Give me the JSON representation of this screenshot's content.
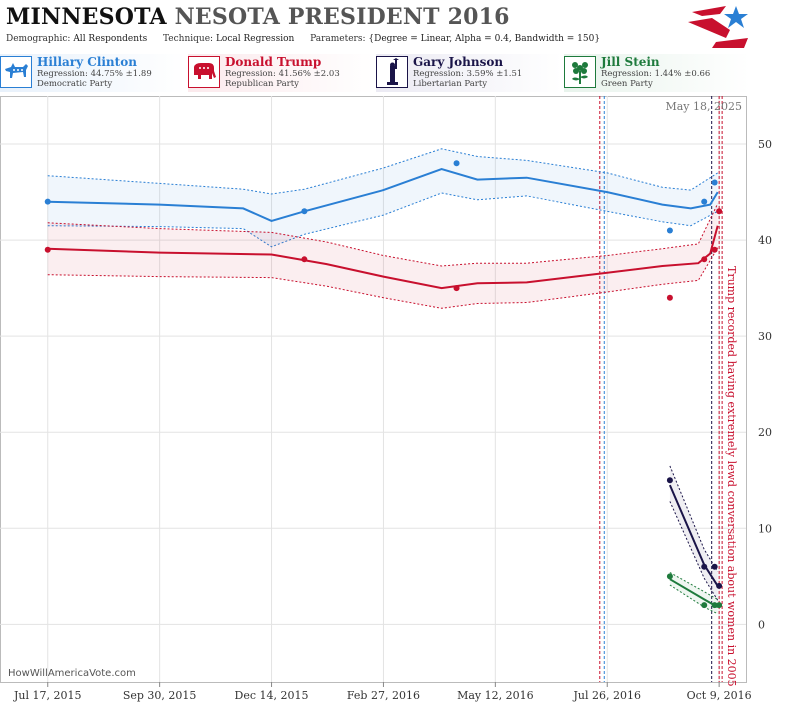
{
  "header": {
    "title_state": "MINNESOTA",
    "title_rest": "NESOTA PRESIDENT 2016",
    "demographic_label": "Demographic:",
    "demographic_value": "All Respondents",
    "technique_label": "Technique:",
    "technique_value": "Local Regression",
    "parameters_label": "Parameters:",
    "parameters_value": "{Degree = Linear, Alpha = 0.4, Bandwidth = 150}"
  },
  "candidates": [
    {
      "name": "Hillary Clinton",
      "regression": "Regression: 44.75% ±1.89",
      "party": "Democratic Party",
      "color": "#2a7fd4",
      "icon": "donkey-icon"
    },
    {
      "name": "Donald Trump",
      "regression": "Regression: 41.56% ±2.03",
      "party": "Republican Party",
      "color": "#c8102e",
      "icon": "elephant-icon"
    },
    {
      "name": "Gary Johnson",
      "regression": "Regression: 3.59% ±1.51",
      "party": "Libertarian Party",
      "color": "#1a1448",
      "icon": "statue-of-liberty-icon"
    },
    {
      "name": "Jill Stein",
      "regression": "Regression: 1.44% ±0.66",
      "party": "Green Party",
      "color": "#1e7a3c",
      "icon": "flower-icon"
    }
  ],
  "footer": "HowWillAmericaVote.com",
  "chart_data": {
    "type": "line",
    "date_label": "May 18, 2025",
    "x_ticks": [
      "Jul 17, 2015",
      "Sep 30, 2015",
      "Dec 14, 2015",
      "Feb 27, 2016",
      "May 12, 2016",
      "Jul 26, 2016",
      "Oct 9, 2016"
    ],
    "x_range": [
      "2015-06-15",
      "2016-10-27"
    ],
    "y_ticks": [
      0,
      10,
      20,
      30,
      40,
      50
    ],
    "ylim": [
      -6,
      55
    ],
    "grid": true,
    "annotation": "Trump recorded having extremely lewd conversation about women in 2005",
    "event_lines": [
      {
        "date": "2016-07-21",
        "color": "#c8102e"
      },
      {
        "date": "2016-07-24",
        "color": "#2a7fd4"
      },
      {
        "date": "2016-10-04",
        "color": "#1a1448"
      },
      {
        "date": "2016-10-09",
        "color": "#c8102e"
      },
      {
        "date": "2016-10-11",
        "color": "#c8102e"
      }
    ],
    "series": [
      {
        "name": "Hillary Clinton",
        "color": "#2a7fd4",
        "band": "#2a7fd4",
        "line": [
          [
            "2015-07-17",
            44.0
          ],
          [
            "2015-09-30",
            43.7
          ],
          [
            "2015-11-25",
            43.3
          ],
          [
            "2015-12-14",
            42.0
          ],
          [
            "2016-01-05",
            43.0
          ],
          [
            "2016-02-27",
            45.2
          ],
          [
            "2016-04-06",
            47.4
          ],
          [
            "2016-04-30",
            46.3
          ],
          [
            "2016-06-02",
            46.5
          ],
          [
            "2016-07-26",
            45.0
          ],
          [
            "2016-09-01",
            43.7
          ],
          [
            "2016-09-20",
            43.3
          ],
          [
            "2016-10-03",
            43.7
          ],
          [
            "2016-10-08",
            45.0
          ]
        ],
        "upper": [
          [
            "2015-07-17",
            46.7
          ],
          [
            "2015-09-30",
            45.9
          ],
          [
            "2015-11-25",
            45.3
          ],
          [
            "2015-12-14",
            44.8
          ],
          [
            "2016-01-05",
            45.3
          ],
          [
            "2016-02-27",
            47.5
          ],
          [
            "2016-04-06",
            49.5
          ],
          [
            "2016-04-30",
            48.7
          ],
          [
            "2016-06-02",
            48.3
          ],
          [
            "2016-07-26",
            47.0
          ],
          [
            "2016-09-01",
            45.5
          ],
          [
            "2016-09-20",
            45.2
          ],
          [
            "2016-10-08",
            47.0
          ]
        ],
        "lower": [
          [
            "2015-07-17",
            41.5
          ],
          [
            "2015-09-30",
            41.4
          ],
          [
            "2015-11-25",
            41.2
          ],
          [
            "2015-12-14",
            39.3
          ],
          [
            "2016-01-05",
            40.6
          ],
          [
            "2016-02-27",
            42.6
          ],
          [
            "2016-04-06",
            44.9
          ],
          [
            "2016-04-30",
            44.2
          ],
          [
            "2016-06-02",
            44.6
          ],
          [
            "2016-07-26",
            43.0
          ],
          [
            "2016-09-01",
            41.9
          ],
          [
            "2016-09-20",
            41.5
          ],
          [
            "2016-10-08",
            43.0
          ]
        ],
        "points": [
          [
            "2015-07-17",
            44
          ],
          [
            "2016-01-05",
            43
          ],
          [
            "2016-04-16",
            48
          ],
          [
            "2016-09-06",
            41
          ],
          [
            "2016-09-29",
            44
          ],
          [
            "2016-10-06",
            46
          ]
        ]
      },
      {
        "name": "Donald Trump",
        "color": "#c8102e",
        "band": "#c8102e",
        "line": [
          [
            "2015-07-17",
            39.1
          ],
          [
            "2015-09-30",
            38.7
          ],
          [
            "2015-12-14",
            38.5
          ],
          [
            "2016-01-20",
            37.5
          ],
          [
            "2016-02-27",
            36.2
          ],
          [
            "2016-04-06",
            35.0
          ],
          [
            "2016-04-30",
            35.5
          ],
          [
            "2016-06-02",
            35.6
          ],
          [
            "2016-07-26",
            36.6
          ],
          [
            "2016-09-01",
            37.3
          ],
          [
            "2016-09-25",
            37.6
          ],
          [
            "2016-10-03",
            38.6
          ],
          [
            "2016-10-08",
            41.5
          ]
        ],
        "upper": [
          [
            "2015-07-17",
            41.8
          ],
          [
            "2015-09-30",
            41.2
          ],
          [
            "2015-12-14",
            40.8
          ],
          [
            "2016-01-20",
            39.8
          ],
          [
            "2016-02-27",
            38.4
          ],
          [
            "2016-04-06",
            37.3
          ],
          [
            "2016-04-30",
            37.6
          ],
          [
            "2016-06-02",
            37.6
          ],
          [
            "2016-07-26",
            38.4
          ],
          [
            "2016-09-01",
            39.1
          ],
          [
            "2016-09-25",
            39.6
          ],
          [
            "2016-10-08",
            43.8
          ]
        ],
        "lower": [
          [
            "2015-07-17",
            36.4
          ],
          [
            "2015-09-30",
            36.2
          ],
          [
            "2015-12-14",
            36.1
          ],
          [
            "2016-01-20",
            35.2
          ],
          [
            "2016-02-27",
            34.0
          ],
          [
            "2016-04-06",
            32.9
          ],
          [
            "2016-04-30",
            33.4
          ],
          [
            "2016-06-02",
            33.5
          ],
          [
            "2016-07-26",
            34.6
          ],
          [
            "2016-09-01",
            35.4
          ],
          [
            "2016-09-25",
            35.8
          ],
          [
            "2016-10-08",
            39.2
          ]
        ],
        "points": [
          [
            "2015-07-17",
            39
          ],
          [
            "2016-01-05",
            38
          ],
          [
            "2016-04-16",
            35
          ],
          [
            "2016-09-06",
            34
          ],
          [
            "2016-09-29",
            38
          ],
          [
            "2016-10-06",
            39
          ],
          [
            "2016-10-09",
            43
          ]
        ]
      },
      {
        "name": "Gary Johnson",
        "color": "#1a1448",
        "band": "#1a1448",
        "line": [
          [
            "2016-09-06",
            14.5
          ],
          [
            "2016-09-29",
            6.2
          ],
          [
            "2016-10-08",
            4.0
          ]
        ],
        "upper": [
          [
            "2016-09-06",
            16.5
          ],
          [
            "2016-09-29",
            7.8
          ],
          [
            "2016-10-08",
            5.5
          ]
        ],
        "lower": [
          [
            "2016-09-06",
            12.8
          ],
          [
            "2016-09-29",
            4.8
          ],
          [
            "2016-10-08",
            2.5
          ]
        ],
        "points": [
          [
            "2016-09-06",
            15
          ],
          [
            "2016-09-29",
            6
          ],
          [
            "2016-10-06",
            6
          ],
          [
            "2016-10-09",
            4
          ]
        ]
      },
      {
        "name": "Jill Stein",
        "color": "#1e7a3c",
        "band": "#1e7a3c",
        "line": [
          [
            "2016-09-06",
            4.7
          ],
          [
            "2016-09-29",
            2.6
          ],
          [
            "2016-10-08",
            1.8
          ]
        ],
        "upper": [
          [
            "2016-09-06",
            5.4
          ],
          [
            "2016-09-29",
            3.4
          ],
          [
            "2016-10-08",
            2.6
          ]
        ],
        "lower": [
          [
            "2016-09-06",
            4.1
          ],
          [
            "2016-09-29",
            1.8
          ],
          [
            "2016-10-08",
            1.1
          ]
        ],
        "points": [
          [
            "2016-09-06",
            5
          ],
          [
            "2016-09-29",
            2
          ],
          [
            "2016-10-06",
            2
          ],
          [
            "2016-10-09",
            2
          ]
        ]
      }
    ]
  }
}
